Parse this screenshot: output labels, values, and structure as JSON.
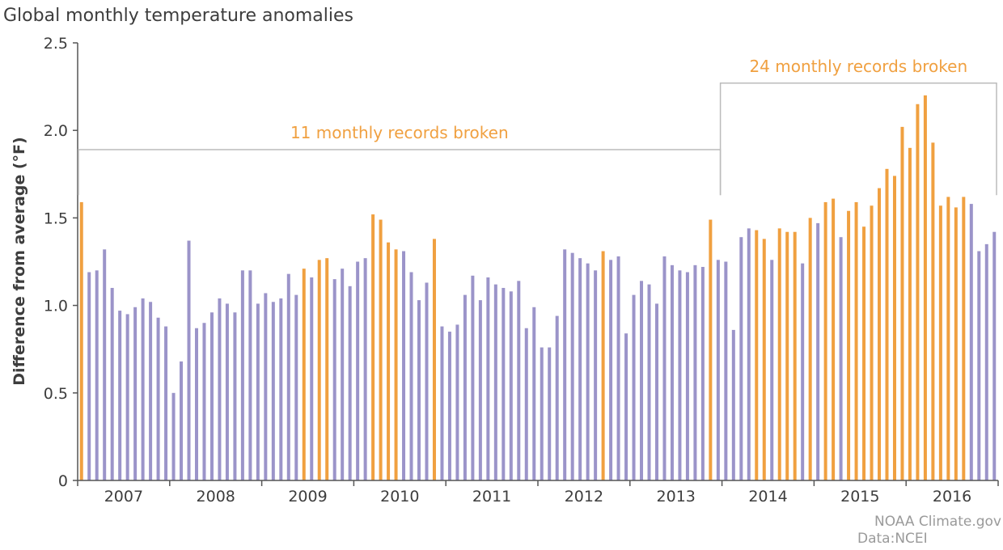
{
  "chart_data": {
    "type": "bar",
    "title": "Global monthly temperature anomalies",
    "ylabel": "Difference from average (°F)",
    "xlabel": "",
    "ylim": [
      0,
      2.5
    ],
    "yticks": [
      "0",
      "0.5",
      "1.0",
      "1.5",
      "2.0",
      "2.5"
    ],
    "year_labels": [
      "2007",
      "2008",
      "2009",
      "2010",
      "2011",
      "2012",
      "2013",
      "2014",
      "2015",
      "2016"
    ],
    "colors": {
      "normal": "#9b94c9",
      "record": "#f0a040",
      "axis": "#555555",
      "bracket": "#bbbbbb"
    },
    "series": [
      {
        "name": "2007",
        "values": [
          1.59,
          1.19,
          1.2,
          1.32,
          1.1,
          0.97,
          0.95,
          0.99,
          1.04,
          1.02,
          0.93,
          0.88
        ],
        "records": [
          true,
          false,
          false,
          false,
          false,
          false,
          false,
          false,
          false,
          false,
          false,
          false
        ]
      },
      {
        "name": "2008",
        "values": [
          0.5,
          0.68,
          1.37,
          0.87,
          0.9,
          0.96,
          1.04,
          1.01,
          0.96,
          1.2,
          1.2,
          1.01
        ],
        "records": [
          false,
          false,
          false,
          false,
          false,
          false,
          false,
          false,
          false,
          false,
          false,
          false
        ]
      },
      {
        "name": "2009",
        "values": [
          1.07,
          1.02,
          1.04,
          1.18,
          1.06,
          1.21,
          1.16,
          1.26,
          1.27,
          1.15,
          1.21,
          1.11
        ],
        "records": [
          false,
          false,
          false,
          false,
          false,
          true,
          false,
          true,
          true,
          false,
          false,
          false
        ]
      },
      {
        "name": "2010",
        "values": [
          1.25,
          1.27,
          1.52,
          1.49,
          1.36,
          1.32,
          1.31,
          1.19,
          1.03,
          1.13,
          1.38,
          0.88
        ],
        "records": [
          false,
          false,
          true,
          true,
          true,
          true,
          false,
          false,
          false,
          false,
          true,
          false
        ]
      },
      {
        "name": "2011",
        "values": [
          0.85,
          0.89,
          1.06,
          1.17,
          1.03,
          1.16,
          1.12,
          1.1,
          1.08,
          1.14,
          0.87,
          0.99
        ],
        "records": [
          false,
          false,
          false,
          false,
          false,
          false,
          false,
          false,
          false,
          false,
          false,
          false
        ]
      },
      {
        "name": "2012",
        "values": [
          0.76,
          0.76,
          0.94,
          1.32,
          1.3,
          1.27,
          1.24,
          1.2,
          1.31,
          1.26,
          1.28,
          0.84
        ],
        "records": [
          false,
          false,
          false,
          false,
          false,
          false,
          false,
          false,
          true,
          false,
          false,
          false
        ]
      },
      {
        "name": "2013",
        "values": [
          1.06,
          1.14,
          1.12,
          1.01,
          1.28,
          1.23,
          1.2,
          1.19,
          1.23,
          1.22,
          1.49,
          1.26
        ],
        "records": [
          false,
          false,
          false,
          false,
          false,
          false,
          false,
          false,
          false,
          false,
          true,
          false
        ]
      },
      {
        "name": "2014",
        "values": [
          1.25,
          0.86,
          1.39,
          1.44,
          1.43,
          1.38,
          1.26,
          1.44,
          1.42,
          1.42,
          1.24,
          1.5
        ],
        "records": [
          false,
          false,
          false,
          false,
          true,
          true,
          false,
          true,
          true,
          true,
          false,
          true
        ]
      },
      {
        "name": "2015",
        "values": [
          1.47,
          1.59,
          1.61,
          1.39,
          1.54,
          1.59,
          1.45,
          1.57,
          1.67,
          1.78,
          1.74,
          2.02
        ],
        "records": [
          false,
          true,
          true,
          false,
          true,
          true,
          true,
          true,
          true,
          true,
          true,
          true
        ]
      },
      {
        "name": "2016",
        "values": [
          1.9,
          2.15,
          2.2,
          1.93,
          1.57,
          1.62,
          1.56,
          1.62,
          1.58,
          1.31,
          1.35,
          1.42
        ],
        "records": [
          true,
          true,
          true,
          true,
          true,
          true,
          true,
          true,
          false,
          false,
          false,
          false
        ]
      }
    ],
    "annotations": [
      {
        "label": "11 monthly records broken",
        "from_year": "2007",
        "to_year": "2013"
      },
      {
        "label": "24 monthly records broken",
        "from_year": "2014",
        "to_year": "2016"
      }
    ]
  },
  "credits": [
    "NOAA Climate.gov",
    "Data:NCEI"
  ]
}
